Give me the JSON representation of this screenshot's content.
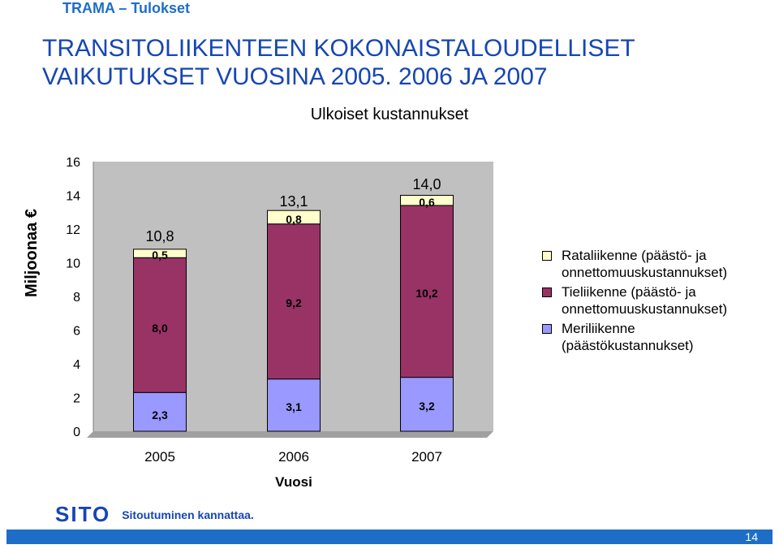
{
  "header": {
    "breadcrumb": "TRAMA – Tulokset",
    "title_line1": "TRANSITOLIIKENTEEN KOKONAISTALOUDELLISET",
    "title_line2": "VAIKUTUKSET VUOSINA 2005. 2006 JA 2007"
  },
  "chart_data": {
    "type": "bar",
    "stacked": true,
    "title": "Ulkoiset kustannukset",
    "xlabel": "Vuosi",
    "ylabel": "Miljoonaa €",
    "ylim": [
      0,
      16
    ],
    "yticks": [
      "0",
      "2",
      "4",
      "6",
      "8",
      "10",
      "12",
      "14",
      "16"
    ],
    "categories": [
      "2005",
      "2006",
      "2007"
    ],
    "series": [
      {
        "name": "Meriliikenne (päästökustannukset)",
        "color": "#9999ff",
        "values": [
          2.3,
          3.1,
          3.2
        ],
        "labels": [
          "2,3",
          "3,1",
          "3,2"
        ]
      },
      {
        "name": "Tieliikenne (päästö- ja onnettomuuskustannukset)",
        "color": "#993366",
        "values": [
          8.0,
          9.2,
          10.2
        ],
        "labels": [
          "8,0",
          "9,2",
          "10,2"
        ]
      },
      {
        "name": "Rataliikenne (päästö- ja onnettomuuskustannukset)",
        "color": "#ffffcc",
        "values": [
          0.5,
          0.8,
          0.6
        ],
        "labels": [
          "0,5",
          "0,8",
          "0,6"
        ]
      }
    ],
    "totals": [
      "10,8",
      "13,1",
      "14,0"
    ],
    "plot_background": "#c0c0c0",
    "legend_position": "right"
  },
  "legend": {
    "items": [
      {
        "label": "Rataliikenne (päästö- ja onnettomuuskustannukset)",
        "color": "#ffffcc"
      },
      {
        "label": "Tieliikenne (päästö- ja onnettomuuskustannukset)",
        "color": "#993366"
      },
      {
        "label": "Meriliikenne (päästökustannukset)",
        "color": "#9999ff"
      }
    ]
  },
  "footer": {
    "logo": "SITO",
    "tagline": "Sitoutuminen kannattaa.",
    "page_number": "14",
    "bar_color": "#1e6ec8"
  }
}
